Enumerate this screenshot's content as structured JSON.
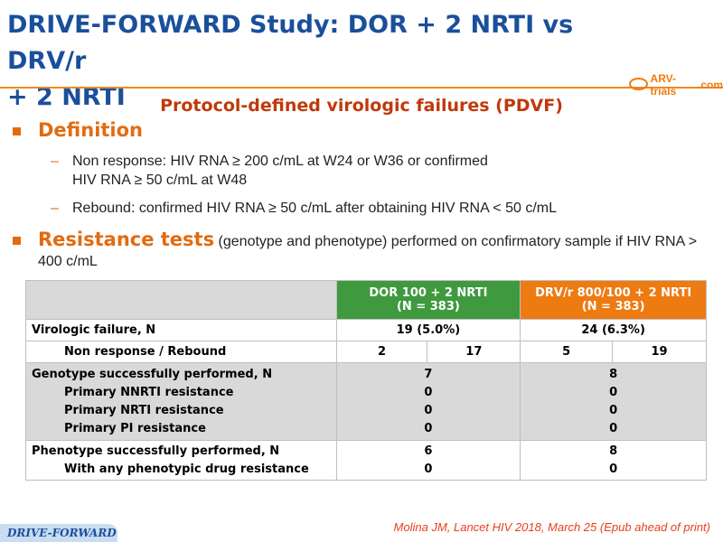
{
  "title": {
    "line1": "DRIVE-FORWARD Study: DOR + 2 NRTI vs DRV/r",
    "line2": "+ 2 NRTI"
  },
  "logo": {
    "text": "ARV-trials",
    "suffix": ".com"
  },
  "subtitle": "Protocol-defined virologic failures (PDVF)",
  "definition": {
    "heading": "Definition",
    "items": [
      {
        "line1": "Non response: HIV RNA ≥ 200 c/mL at W24 or W36 or confirmed",
        "line2": "HIV RNA ≥ 50 c/mL at W48"
      },
      {
        "line1": "Rebound: confirmed HIV RNA ≥ 50 c/mL after obtaining HIV RNA < 50 c/mL"
      }
    ]
  },
  "resistance": {
    "heading": "Resistance tests",
    "text": " (genotype and phenotype) performed on confirmatory sample if HIV RNA > 400 c/mL"
  },
  "table": {
    "col_dor": {
      "line1": "DOR 100 + 2 NRTI",
      "line2": "(N = 383)"
    },
    "col_drv": {
      "line1": "DRV/r 800/100 + 2 NRTI",
      "line2": "(N = 383)"
    },
    "virologic": {
      "label": "Virologic failure, N",
      "dor": "19 (5.0%)",
      "drv": "24 (6.3%)"
    },
    "nonresp": {
      "label": "Non response / Rebound",
      "dor_a": "2",
      "dor_b": "17",
      "drv_a": "5",
      "drv_b": "19"
    },
    "genotype": {
      "label": "Genotype successfully performed, N",
      "sub": [
        "Primary NNRTI resistance",
        "Primary NRTI resistance",
        "Primary PI resistance"
      ],
      "dor": [
        "7",
        "0",
        "0",
        "0"
      ],
      "drv": [
        "8",
        "0",
        "0",
        "0"
      ]
    },
    "phenotype": {
      "label": "Phenotype successfully performed, N",
      "sub": [
        "With any phenotypic drug resistance"
      ],
      "dor": [
        "6",
        "0"
      ],
      "drv": [
        "8",
        "0"
      ]
    }
  },
  "footer": {
    "reference": "Molina JM, Lancet HIV 2018, March 25 (Epub ahead of print)",
    "tag": "DRIVE-FORWARD"
  },
  "colors": {
    "title": "#1a4f9c",
    "accent": "#e26b10",
    "green": "#3f9a3f",
    "orange": "#ee7a12"
  }
}
